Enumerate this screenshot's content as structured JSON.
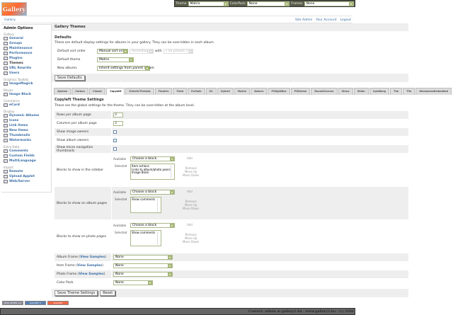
{
  "logo": {
    "text": "Gallery"
  },
  "themebar": {
    "theme_label": "Theme",
    "theme_value": "Matrix",
    "colorpack_label": "ColorPack",
    "colorpack_value": "None",
    "frames_label": "Frames",
    "frames_value": "None"
  },
  "nav": {
    "breadcrumb": "Gallery",
    "links": [
      "Site Admin",
      "Your Account",
      "Logout"
    ]
  },
  "sidebar": {
    "title": "Admin Options",
    "groups": [
      {
        "heading": "Gallery",
        "items": [
          "General",
          "Groups",
          "Maintenance",
          "Performance",
          "Plugins",
          "Themes",
          "URL Rewrite",
          "Users"
        ]
      },
      {
        "heading": "Graphics Toolkits",
        "items": [
          "ImageMagick"
        ]
      },
      {
        "heading": "Blocks",
        "items": [
          "Image Block"
        ]
      },
      {
        "heading": "Commerce",
        "items": [
          "eCard"
        ]
      },
      {
        "heading": "Display",
        "items": [
          "Dynamic Albums",
          "Icons",
          "Link Items",
          "New Items",
          "Thumbnails",
          "Watermarks"
        ]
      },
      {
        "heading": "Extra Data",
        "items": [
          "Comments",
          "Custom Fields",
          "MultiLanguage"
        ]
      },
      {
        "heading": "Import",
        "items": [
          "Remote",
          "Upload Applet",
          "Web/Server"
        ]
      }
    ]
  },
  "main": {
    "title": "Gallery Themes",
    "defaults": {
      "heading": "Defaults",
      "description": "These are default display settings for albums in your gallery. They can be overridden in each album.",
      "sort_label": "Default sort order",
      "sort_value": "Manual sort order",
      "sort_dir": "Ascending",
      "with_label": "with",
      "presort": "« no presort »",
      "theme_label": "Default theme",
      "theme_value": "Matrix",
      "new_label": "New albums",
      "new_value": "Inherit settings from parent album",
      "save": "Save Defaults"
    },
    "tabs": [
      "Ajaxian",
      "Carbon",
      "Classic",
      "Copyleft",
      "EclecticThreads",
      "Floatrix",
      "Fluid",
      "ForSale",
      "G1",
      "Hybrid",
      "Matrix",
      "Nature",
      "PGlightBox",
      "PGtheme",
      "RoundCorners",
      "Siriux",
      "Slider",
      "SplaBang",
      "Tim",
      "Tile",
      "WordpressEmbedded"
    ],
    "active_tab": "Copyleft",
    "settings": {
      "heading": "Copyleft Theme Settings",
      "description": "These are the global settings for the theme. They can be overridden at the album level.",
      "rows_label": "Rows per album page",
      "rows_value": "3",
      "cols_label": "Columns per album page",
      "cols_value": "3",
      "image_owners": "Show image owners",
      "image_owners_checked": false,
      "album_owners": "Show album owners",
      "album_owners_checked": true,
      "more_nav": "Show micro navigation thumbnails",
      "more_nav_checked": false,
      "available": "Available",
      "selected": "Selected",
      "choose": "Choose a block",
      "add": "Add",
      "remove": "Remove",
      "up": "Move Up",
      "down": "Move Down",
      "sidebar_blocks_label": "Blocks to show in the sidebar",
      "sidebar_blocks": [
        "Item actions",
        "Links to album/photo peers",
        "Image Block"
      ],
      "album_blocks_label": "Blocks to show on album pages",
      "album_blocks": [
        "Show comments"
      ],
      "photo_blocks_label": "Blocks to show on photo pages",
      "photo_blocks": [
        "Show comments"
      ],
      "view_samples": "View Samples",
      "album_frame": "Album Frame",
      "item_frame": "Item Frame",
      "photo_frame": "Photo Frame",
      "color_pack": "Color Pack",
      "none": "None",
      "save": "Save Theme Settings",
      "reset": "Reset"
    }
  },
  "badges": [
    "W3C XHTML 1.0",
    "GALLERY 2",
    "GALLERY"
  ],
  "footer": "Contact: admin at gallery2.hu - www.gallery2.hu - (c) 2006"
}
